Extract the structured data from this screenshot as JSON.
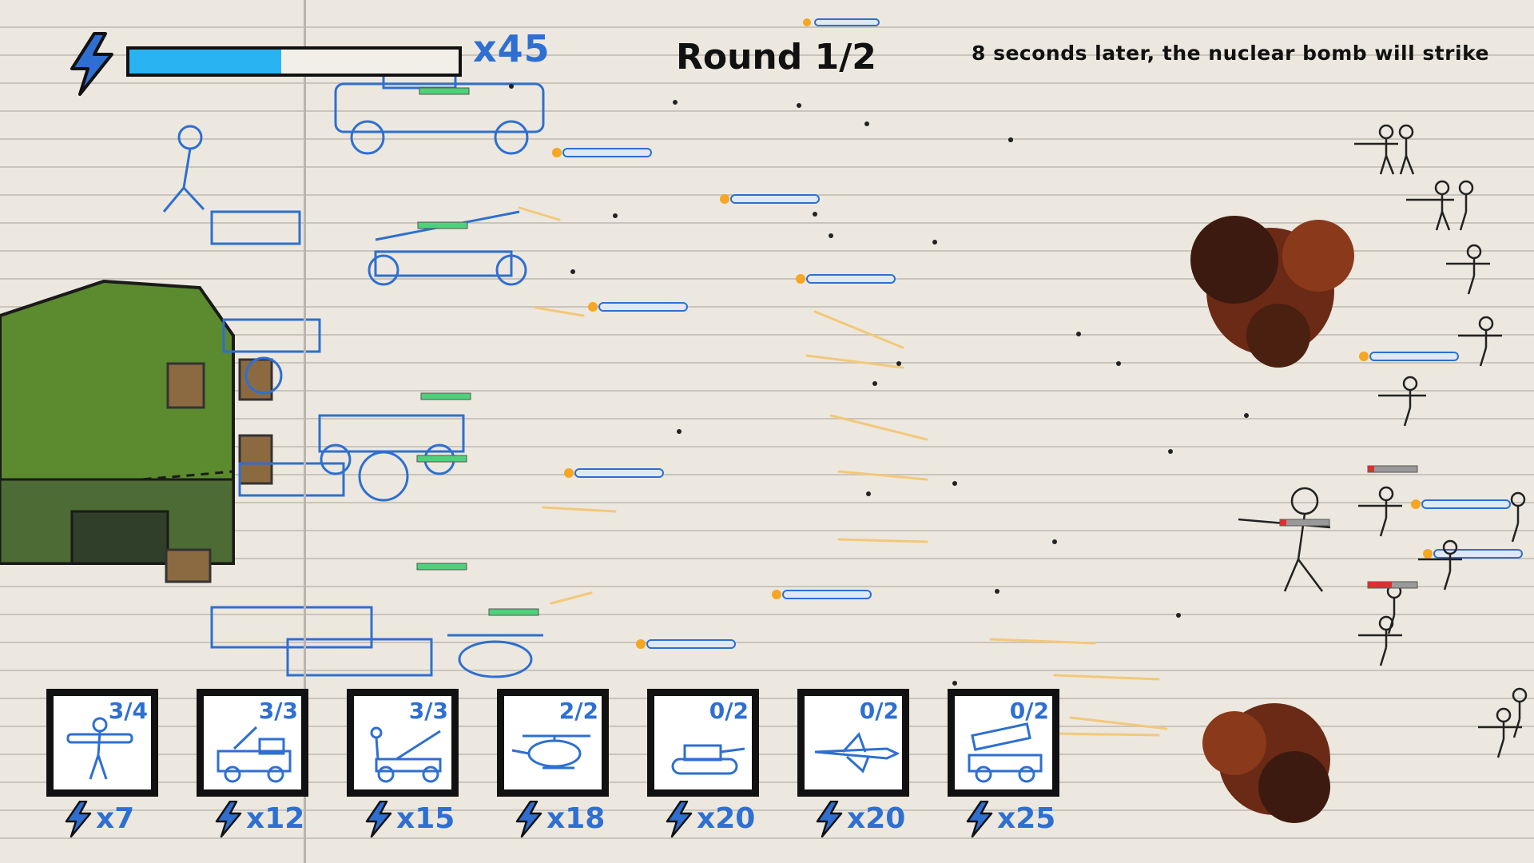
{
  "hud": {
    "energy_icon": "lightning-bolt-icon",
    "energy_fill_fraction": 0.46,
    "energy_bar_color": "#2ab3f2",
    "energy_count": "x45",
    "round": "Round 1/2",
    "nuke_warning": "8 seconds later, the nuclear bomb will strike"
  },
  "colors": {
    "player_ink": "#2e6fd1",
    "enemy_ink": "#222222",
    "tent_green": "#5c8a2e",
    "health_green": "#4fd07a",
    "health_red": "#d93030"
  },
  "units": [
    {
      "name": "bazooka-soldier",
      "icon": "bazooka-soldier-icon",
      "slots": "3/4",
      "cost": "x7"
    },
    {
      "name": "machine-gun-truck",
      "icon": "gun-truck-icon",
      "slots": "3/3",
      "cost": "x12"
    },
    {
      "name": "anti-air-gun",
      "icon": "anti-air-gun-icon",
      "slots": "3/3",
      "cost": "x15"
    },
    {
      "name": "helicopter",
      "icon": "helicopter-icon",
      "slots": "2/2",
      "cost": "x18"
    },
    {
      "name": "tank",
      "icon": "tank-icon",
      "slots": "0/2",
      "cost": "x20"
    },
    {
      "name": "fighter-jet",
      "icon": "fighter-jet-icon",
      "slots": "0/2",
      "cost": "x20"
    },
    {
      "name": "rocket-launcher-truck",
      "icon": "rocket-truck-icon",
      "slots": "0/2",
      "cost": "x25"
    }
  ]
}
